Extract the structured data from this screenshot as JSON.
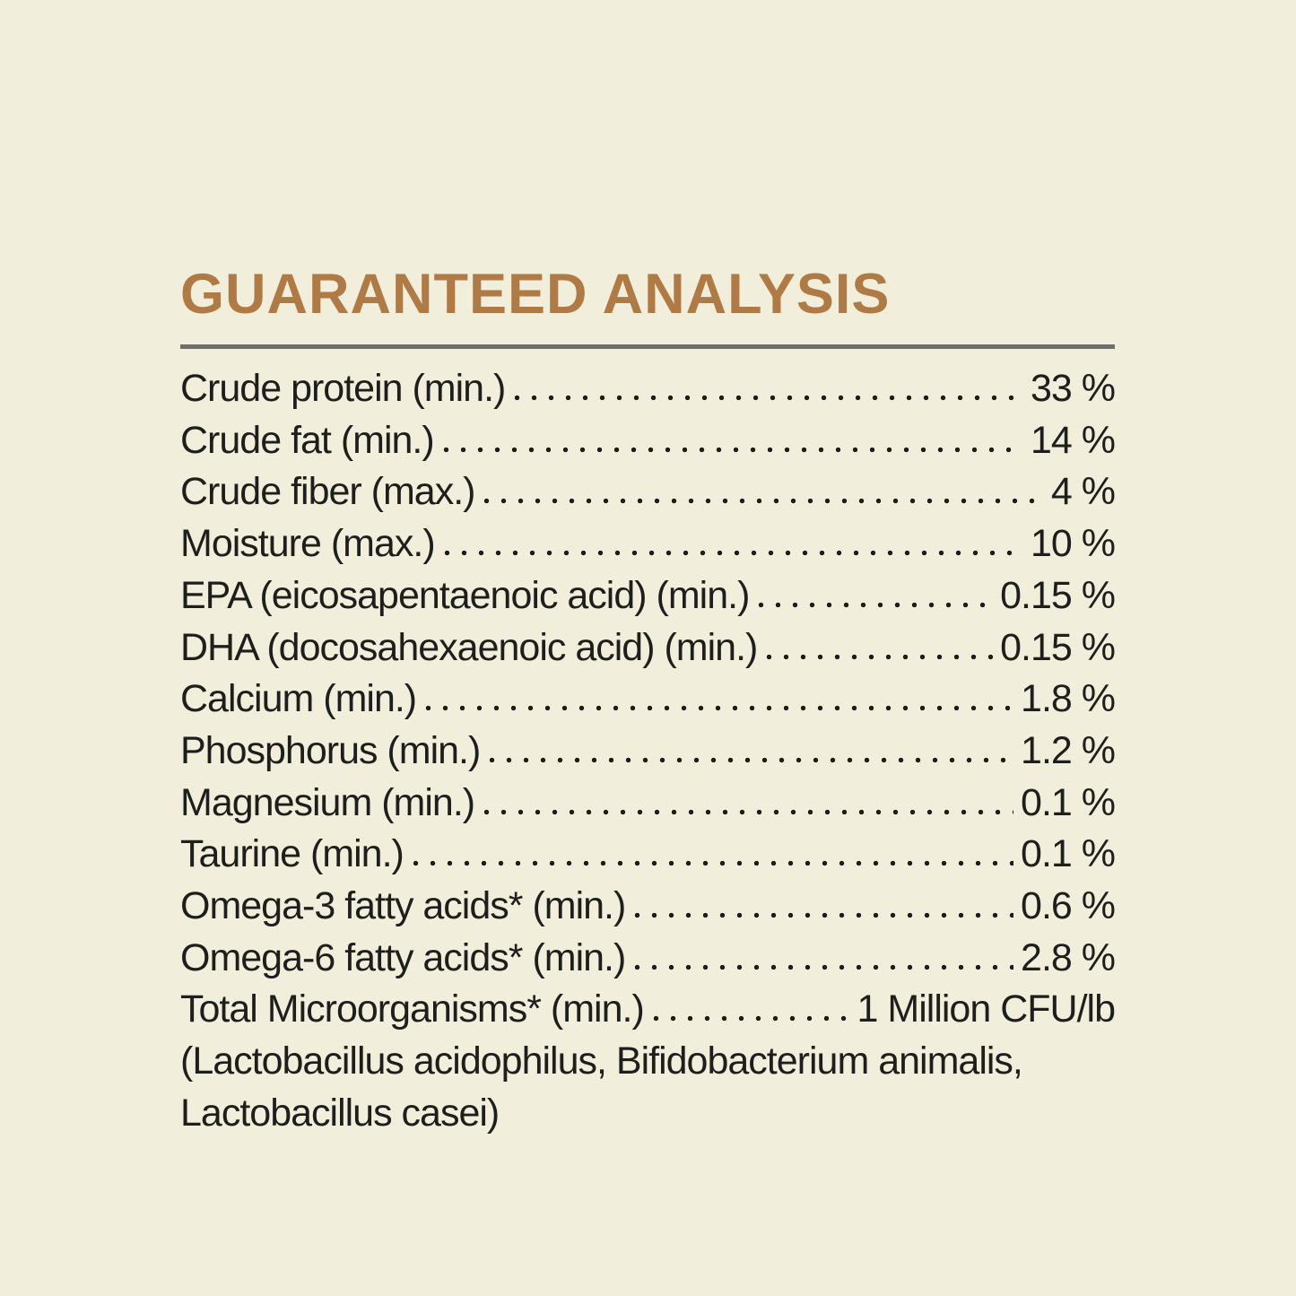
{
  "page": {
    "background_color": "#f1eedb",
    "text_color": "#1e1e1c"
  },
  "header": {
    "title": "GUARANTEED ANALYSIS",
    "title_color": "#b07a45",
    "divider_color": "#70706a"
  },
  "analysis": {
    "rows": [
      {
        "label": "Crude protein (min.)",
        "value": "33 %"
      },
      {
        "label": "Crude fat (min.)",
        "value": "14 %"
      },
      {
        "label": "Crude fiber (max.)",
        "value": "4 %"
      },
      {
        "label": "Moisture (max.)",
        "value": "10 %"
      },
      {
        "label": "EPA (eicosapentaenoic acid) (min.)",
        "value": "0.15 %"
      },
      {
        "label": "DHA (docosahexaenoic acid) (min.)",
        "value": "0.15 %"
      },
      {
        "label": "Calcium (min.)",
        "value": "1.8 %"
      },
      {
        "label": "Phosphorus (min.)",
        "value": "1.2 %"
      },
      {
        "label": "Magnesium (min.)",
        "value": "0.1 %"
      },
      {
        "label": "Taurine (min.)",
        "value": "0.1 %"
      },
      {
        "label": "Omega-3 fatty acids* (min.)",
        "value": "0.6 %"
      },
      {
        "label": "Omega-6 fatty acids* (min.)",
        "value": "2.8 %"
      },
      {
        "label": "Total Microorganisms* (min.)",
        "value": "1 Million CFU/lb"
      }
    ],
    "footnote_lines": [
      "(Lactobacillus acidophilus, Bifidobacterium animalis,",
      "Lactobacillus casei)"
    ]
  }
}
